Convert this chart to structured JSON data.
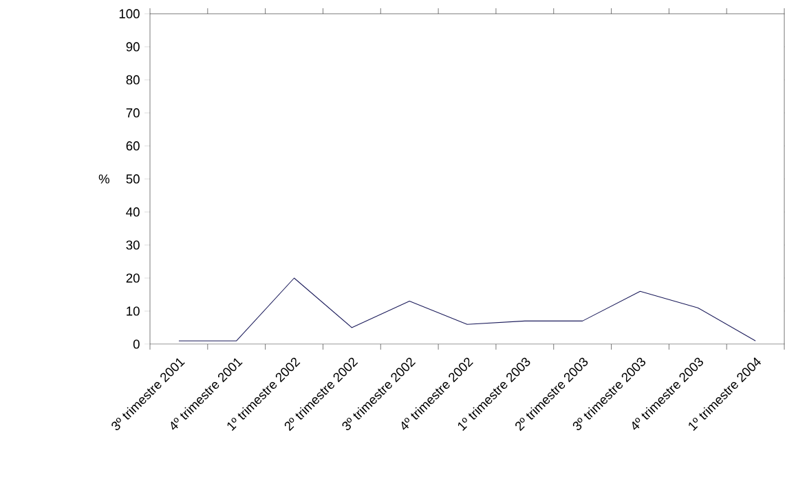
{
  "chart_data": {
    "type": "line",
    "ylabel": "%",
    "categories": [
      "3º trimestre 2001",
      "4º trimestre 2001",
      "1º trimestre 2002",
      "2º trimestre 2002",
      "3º trimestre 2002",
      "4º trimestre 2002",
      "1º trimestre 2003",
      "2º trimestre 2003",
      "3º trimestre 2003",
      "4º trimestre 2003",
      "1º trimestre 2004"
    ],
    "values": [
      1,
      1,
      20,
      5,
      13,
      6,
      7,
      7,
      16,
      11,
      1
    ],
    "color": "#1a1a5a",
    "ylim": [
      0,
      100
    ],
    "yticks": [
      0,
      10,
      20,
      30,
      40,
      50,
      60,
      70,
      80,
      90,
      100
    ]
  }
}
